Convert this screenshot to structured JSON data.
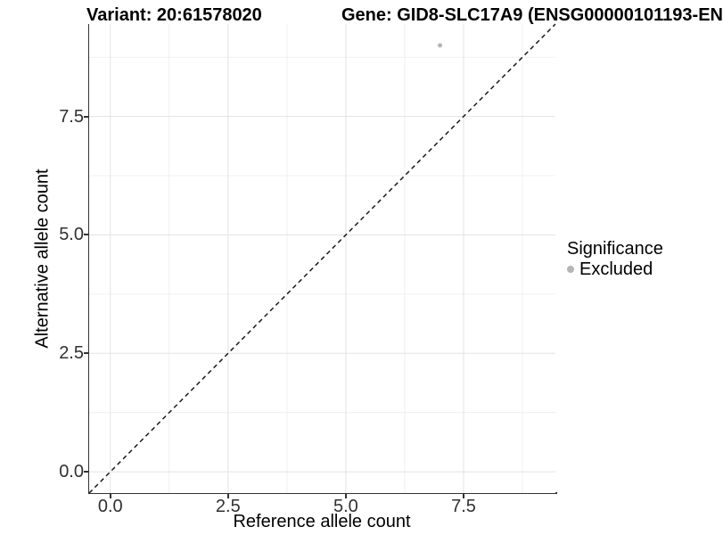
{
  "header": {
    "variant_title": "Variant: 20:61578020",
    "gene_title": "Gene: GID8-SLC17A9 (ENSG00000101193-EN"
  },
  "chart_data": {
    "type": "scatter",
    "title_left": "Variant: 20:61578020",
    "title_right": "Gene: GID8-SLC17A9 (ENSG00000101193-EN",
    "xlabel": "Reference allele count",
    "ylabel": "Alternative allele count",
    "xlim": [
      -0.45,
      9.45
    ],
    "ylim": [
      -0.45,
      9.45
    ],
    "x_ticks": [
      "0.0",
      "2.5",
      "5.0",
      "7.5"
    ],
    "x_tick_values": [
      0,
      2.5,
      5,
      7.5
    ],
    "y_ticks": [
      "0.0",
      "2.5",
      "5.0",
      "7.5"
    ],
    "y_tick_values": [
      0,
      2.5,
      5,
      7.5
    ],
    "minor_tick_values": [
      1.25,
      3.75,
      6.25,
      8.75
    ],
    "grid": true,
    "reference_line": {
      "type": "abline",
      "slope": 1,
      "intercept": 0,
      "style": "dashed",
      "color": "#1a1a1a"
    },
    "points": [
      {
        "x": 7,
        "y": 9,
        "significance": "Excluded",
        "color": "#b5b5b5",
        "radius": 2.5
      }
    ],
    "legend": {
      "title": "Significance",
      "position": "right",
      "items": [
        {
          "label": "Excluded",
          "marker": "circle",
          "color": "#b5b5b5"
        }
      ]
    },
    "colors": {
      "grid_major": "#e3e3e3",
      "grid_minor": "#f0f0f0",
      "axis_line": "#333333",
      "tick_text": "#303030",
      "text": "#000000",
      "point_excluded": "#b5b5b5",
      "background": "#ffffff"
    }
  }
}
